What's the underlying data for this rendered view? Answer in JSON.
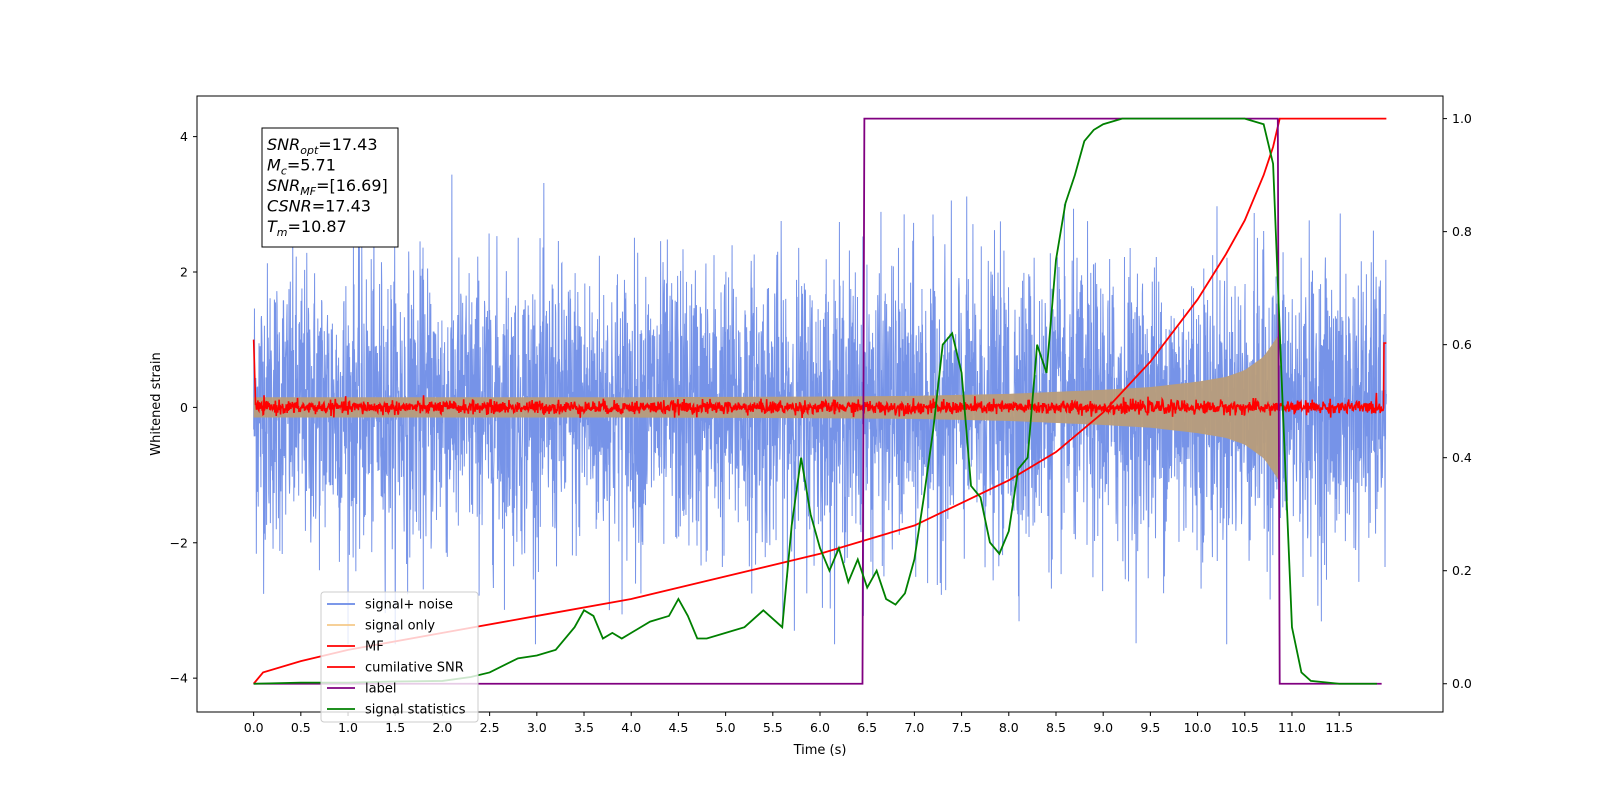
{
  "chart_data": {
    "type": "line",
    "xlabel": "Time (s)",
    "ylabel_left": "Whitened strain",
    "ylabel_right": "",
    "xlim": [
      -0.6,
      12.6
    ],
    "ylim_left": [
      -4.5,
      4.6
    ],
    "ylim_right": [
      -0.05,
      1.04
    ],
    "x_ticks": [
      "0.0",
      "0.5",
      "1.0",
      "1.5",
      "2.0",
      "2.5",
      "3.0",
      "3.5",
      "4.0",
      "4.5",
      "5.0",
      "5.5",
      "6.0",
      "6.5",
      "7.0",
      "7.5",
      "8.0",
      "8.5",
      "9.0",
      "9.5",
      "10.0",
      "10.5",
      "11.0",
      "11.5"
    ],
    "y_ticks_left": [
      "4",
      "2",
      "0",
      "−2",
      "−4"
    ],
    "y_ticks_right": [
      "1.0",
      "0.8",
      "0.6",
      "0.4",
      "0.2",
      "0.0"
    ],
    "legend_position": "lower-left",
    "grid": false,
    "annotation": {
      "lines": [
        {
          "main": "SNR",
          "sub": "opt",
          "value": "=17.43"
        },
        {
          "main": "M",
          "sub": "c",
          "value": "=5.71"
        },
        {
          "main": "SNR",
          "sub": "MF",
          "value": "=[16.69]"
        },
        {
          "main": "CSNR",
          "sub": "",
          "value": "=17.43"
        },
        {
          "main": "T",
          "sub": "m",
          "value": "=10.87"
        }
      ]
    },
    "series": [
      {
        "name": "signal+ noise",
        "color": "#6a8ae6",
        "axis": "left",
        "description": "whitened noisy strain, roughly -3.5 to 3.5",
        "x_range": [
          0.0,
          12.0
        ],
        "amplitude_envelope": 3.3
      },
      {
        "name": "signal only",
        "color": "#f5c98a",
        "axis": "left",
        "x": [
          0.0,
          2.0,
          4.0,
          6.0,
          7.0,
          8.0,
          9.0,
          9.5,
          10.0,
          10.3,
          10.5,
          10.7,
          10.8,
          10.87
        ],
        "envelope": [
          0.15,
          0.15,
          0.15,
          0.16,
          0.17,
          0.2,
          0.26,
          0.3,
          0.38,
          0.45,
          0.55,
          0.75,
          0.95,
          1.1
        ]
      },
      {
        "name": "MF",
        "color": "#ff0000",
        "axis": "left",
        "description": "matched filter output, near 0 with small noise",
        "x_range": [
          0.0,
          12.0
        ]
      },
      {
        "name": "cumilative SNR",
        "color": "#ff0000",
        "axis": "right",
        "x": [
          0.0,
          0.1,
          0.5,
          1.0,
          2.0,
          3.0,
          4.0,
          5.0,
          6.0,
          7.0,
          7.5,
          8.0,
          8.5,
          9.0,
          9.5,
          10.0,
          10.3,
          10.5,
          10.7,
          10.8,
          10.87,
          11.0,
          12.0
        ],
        "values": [
          0.0,
          0.02,
          0.04,
          0.06,
          0.09,
          0.12,
          0.15,
          0.19,
          0.23,
          0.28,
          0.32,
          0.36,
          0.41,
          0.48,
          0.57,
          0.68,
          0.76,
          0.82,
          0.9,
          0.95,
          1.0,
          1.0,
          1.0
        ]
      },
      {
        "name": "label",
        "color": "#800080",
        "axis": "right",
        "x": [
          0.0,
          6.45,
          6.47,
          10.85,
          10.87,
          11.95
        ],
        "values": [
          0.0,
          0.0,
          1.0,
          1.0,
          0.0,
          0.0
        ]
      },
      {
        "name": "signal statistics",
        "color": "#008000",
        "axis": "right",
        "x": [
          0.0,
          0.5,
          1.0,
          1.5,
          2.0,
          2.3,
          2.5,
          2.8,
          3.0,
          3.2,
          3.4,
          3.5,
          3.6,
          3.7,
          3.8,
          3.9,
          4.0,
          4.2,
          4.4,
          4.5,
          4.6,
          4.7,
          4.8,
          5.0,
          5.2,
          5.4,
          5.6,
          5.7,
          5.8,
          5.9,
          6.0,
          6.1,
          6.2,
          6.3,
          6.4,
          6.5,
          6.6,
          6.7,
          6.8,
          6.9,
          7.0,
          7.1,
          7.2,
          7.3,
          7.4,
          7.5,
          7.6,
          7.7,
          7.8,
          7.9,
          8.0,
          8.1,
          8.2,
          8.3,
          8.4,
          8.5,
          8.6,
          8.7,
          8.8,
          8.9,
          9.0,
          9.2,
          9.5,
          10.0,
          10.5,
          10.7,
          10.8,
          10.9,
          11.0,
          11.1,
          11.2,
          11.5,
          11.9
        ],
        "values": [
          0.0,
          0.002,
          0.002,
          0.004,
          0.005,
          0.012,
          0.02,
          0.045,
          0.05,
          0.06,
          0.1,
          0.13,
          0.12,
          0.08,
          0.09,
          0.08,
          0.09,
          0.11,
          0.12,
          0.15,
          0.12,
          0.08,
          0.08,
          0.09,
          0.1,
          0.13,
          0.1,
          0.28,
          0.4,
          0.3,
          0.24,
          0.2,
          0.24,
          0.18,
          0.22,
          0.17,
          0.2,
          0.15,
          0.14,
          0.16,
          0.22,
          0.33,
          0.45,
          0.6,
          0.62,
          0.55,
          0.35,
          0.33,
          0.25,
          0.23,
          0.27,
          0.38,
          0.4,
          0.6,
          0.55,
          0.75,
          0.85,
          0.9,
          0.96,
          0.98,
          0.99,
          1.0,
          1.0,
          1.0,
          1.0,
          0.99,
          0.92,
          0.5,
          0.1,
          0.02,
          0.005,
          0.0,
          0.0
        ]
      }
    ]
  }
}
